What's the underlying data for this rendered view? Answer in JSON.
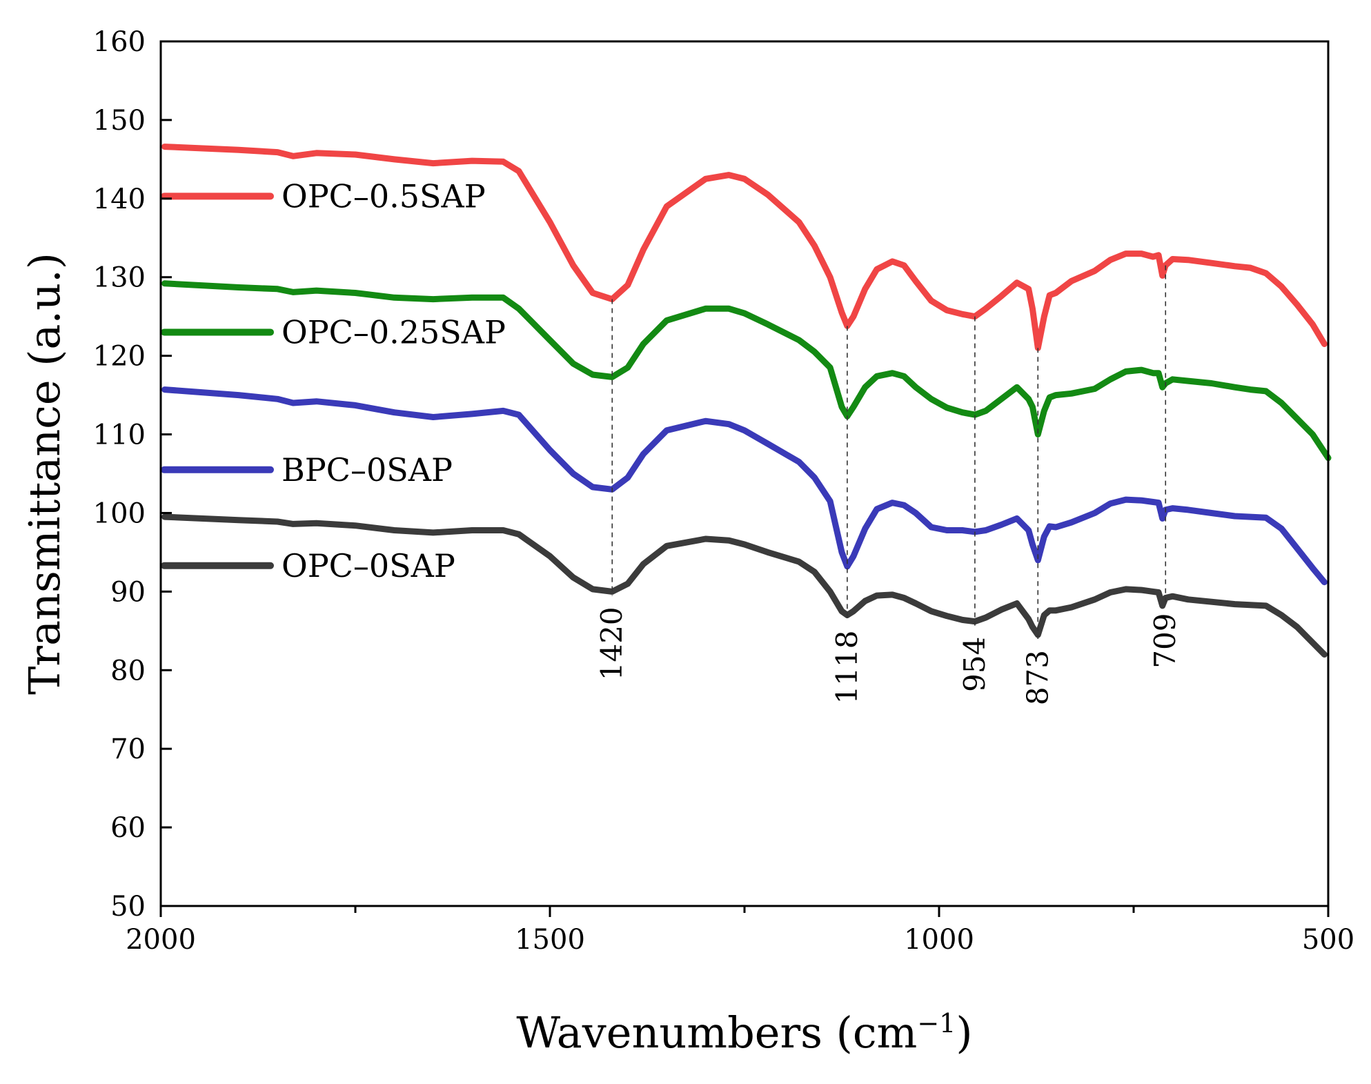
{
  "chart_data": {
    "type": "line",
    "xlabel": "Wavenumbers (cm",
    "xlabel_sup": "−1",
    "xlabel_close": ")",
    "ylabel": "Transmittance (a.u.)",
    "xlim": [
      2000,
      500
    ],
    "ylim": [
      50,
      160
    ],
    "x_ticks": [
      2000,
      1500,
      1000,
      500
    ],
    "x_ticks_labels": [
      "2000",
      "1500",
      "1000",
      "500"
    ],
    "x_minor_ticks": [
      1750,
      1250,
      750
    ],
    "y_ticks": [
      50,
      60,
      70,
      80,
      90,
      100,
      110,
      120,
      130,
      140,
      150,
      160
    ],
    "y_ticks_labels": [
      "50",
      "60",
      "70",
      "80",
      "90",
      "100",
      "110",
      "120",
      "130",
      "140",
      "150",
      "160"
    ],
    "grid": false,
    "legend_position": "left-inside",
    "series": [
      {
        "name": "OPC–0.5SAP",
        "color": "#f04545",
        "legend_y": 140.3,
        "x": [
          1995,
          1900,
          1850,
          1830,
          1800,
          1750,
          1700,
          1650,
          1600,
          1560,
          1540,
          1500,
          1470,
          1445,
          1420,
          1400,
          1380,
          1350,
          1300,
          1270,
          1250,
          1220,
          1180,
          1160,
          1140,
          1125,
          1118,
          1110,
          1095,
          1080,
          1060,
          1045,
          1030,
          1010,
          990,
          970,
          954,
          940,
          920,
          900,
          885,
          880,
          873,
          865,
          858,
          850,
          830,
          800,
          780,
          760,
          740,
          725,
          718,
          713,
          709,
          700,
          680,
          650,
          620,
          600,
          580,
          560,
          540,
          520,
          505
        ],
        "y": [
          146.6,
          146.2,
          145.9,
          145.4,
          145.8,
          145.6,
          145.0,
          144.5,
          144.8,
          144.7,
          143.5,
          137.0,
          131.5,
          128.0,
          127.2,
          129.0,
          133.5,
          139.0,
          142.5,
          143.0,
          142.5,
          140.5,
          137.0,
          134.0,
          130.0,
          125.5,
          123.8,
          125.0,
          128.5,
          131.0,
          132.0,
          131.5,
          129.5,
          127.0,
          125.8,
          125.3,
          125.0,
          126.0,
          127.6,
          129.3,
          128.5,
          126.0,
          121.0,
          125.0,
          127.7,
          128.0,
          129.5,
          130.8,
          132.2,
          133.0,
          133.0,
          132.6,
          132.8,
          130.2,
          131.5,
          132.3,
          132.2,
          131.8,
          131.4,
          131.2,
          130.5,
          128.8,
          126.5,
          124.0,
          121.5
        ]
      },
      {
        "name": "OPC–0.25SAP",
        "color": "#138a13",
        "legend_y": 123.0,
        "x": [
          1995,
          1900,
          1850,
          1830,
          1800,
          1750,
          1700,
          1650,
          1600,
          1560,
          1540,
          1500,
          1470,
          1445,
          1420,
          1400,
          1380,
          1350,
          1300,
          1270,
          1250,
          1220,
          1180,
          1160,
          1140,
          1125,
          1118,
          1110,
          1095,
          1080,
          1060,
          1045,
          1030,
          1010,
          990,
          970,
          954,
          940,
          920,
          900,
          885,
          880,
          873,
          865,
          858,
          850,
          830,
          800,
          780,
          760,
          740,
          725,
          718,
          713,
          709,
          700,
          680,
          650,
          620,
          600,
          580,
          560,
          540,
          520,
          500
        ],
        "y": [
          129.2,
          128.7,
          128.5,
          128.1,
          128.3,
          128.0,
          127.4,
          127.2,
          127.4,
          127.4,
          126.0,
          122.0,
          119.0,
          117.6,
          117.3,
          118.5,
          121.5,
          124.5,
          126.0,
          126.0,
          125.4,
          124.0,
          122.0,
          120.5,
          118.5,
          113.5,
          112.3,
          113.5,
          116.0,
          117.4,
          117.8,
          117.4,
          116.0,
          114.5,
          113.4,
          112.8,
          112.5,
          113.0,
          114.5,
          116.0,
          114.5,
          113.5,
          110.0,
          113.0,
          114.7,
          115.0,
          115.2,
          115.8,
          117.0,
          118.0,
          118.2,
          117.8,
          117.8,
          116.0,
          116.5,
          117.0,
          116.8,
          116.5,
          116.0,
          115.7,
          115.5,
          114.0,
          112.0,
          110.0,
          107.0
        ]
      },
      {
        "name": "BPC–0SAP",
        "color": "#3a3ab8",
        "legend_y": 105.5,
        "x": [
          1995,
          1900,
          1850,
          1830,
          1800,
          1750,
          1700,
          1650,
          1600,
          1560,
          1540,
          1500,
          1470,
          1445,
          1420,
          1400,
          1380,
          1350,
          1300,
          1270,
          1250,
          1220,
          1180,
          1160,
          1140,
          1125,
          1118,
          1110,
          1095,
          1080,
          1060,
          1045,
          1030,
          1010,
          990,
          970,
          954,
          940,
          920,
          900,
          885,
          880,
          873,
          865,
          858,
          850,
          830,
          800,
          780,
          760,
          740,
          725,
          718,
          713,
          709,
          700,
          680,
          650,
          620,
          600,
          580,
          560,
          540,
          520,
          505
        ],
        "y": [
          115.7,
          115.0,
          114.5,
          114.0,
          114.2,
          113.7,
          112.8,
          112.2,
          112.6,
          113.0,
          112.5,
          108.0,
          105.0,
          103.3,
          103.0,
          104.5,
          107.5,
          110.5,
          111.7,
          111.3,
          110.5,
          108.8,
          106.5,
          104.5,
          101.5,
          95.0,
          93.2,
          94.5,
          98.0,
          100.5,
          101.3,
          101.0,
          100.0,
          98.2,
          97.8,
          97.8,
          97.6,
          97.8,
          98.5,
          99.3,
          97.8,
          96.0,
          94.0,
          97.0,
          98.3,
          98.2,
          98.8,
          100.0,
          101.2,
          101.7,
          101.6,
          101.4,
          101.3,
          99.3,
          100.4,
          100.6,
          100.4,
          100.0,
          99.6,
          99.5,
          99.4,
          98.0,
          95.5,
          93.0,
          91.2
        ]
      },
      {
        "name": "OPC–0SAP",
        "color": "#3b3b3b",
        "legend_y": 93.3,
        "x": [
          1995,
          1900,
          1850,
          1830,
          1800,
          1750,
          1700,
          1650,
          1600,
          1560,
          1540,
          1500,
          1470,
          1445,
          1420,
          1400,
          1380,
          1350,
          1300,
          1270,
          1250,
          1220,
          1180,
          1160,
          1140,
          1125,
          1118,
          1110,
          1095,
          1080,
          1060,
          1045,
          1030,
          1010,
          990,
          970,
          954,
          940,
          920,
          900,
          885,
          880,
          873,
          865,
          858,
          850,
          830,
          800,
          780,
          760,
          740,
          725,
          718,
          713,
          709,
          700,
          680,
          650,
          620,
          600,
          580,
          560,
          540,
          520,
          505
        ],
        "y": [
          99.5,
          99.1,
          98.9,
          98.6,
          98.7,
          98.4,
          97.8,
          97.5,
          97.8,
          97.8,
          97.3,
          94.5,
          91.8,
          90.3,
          90.0,
          91.0,
          93.5,
          95.8,
          96.7,
          96.5,
          96.0,
          95.0,
          93.8,
          92.5,
          90.0,
          87.5,
          87.0,
          87.5,
          88.8,
          89.5,
          89.6,
          89.2,
          88.5,
          87.5,
          86.9,
          86.4,
          86.2,
          86.7,
          87.7,
          88.5,
          86.5,
          85.5,
          84.5,
          87.0,
          87.6,
          87.6,
          88.0,
          89.0,
          89.9,
          90.3,
          90.2,
          90.0,
          89.9,
          88.2,
          89.2,
          89.4,
          89.0,
          88.7,
          88.4,
          88.3,
          88.2,
          87.0,
          85.5,
          83.5,
          82.0
        ]
      }
    ],
    "peaks": [
      {
        "x": 1420,
        "label": "1420",
        "y_top": 127.2,
        "y_bottom": 90.0
      },
      {
        "x": 1118,
        "label": "1118",
        "y_top": 123.8,
        "y_bottom": 87.0
      },
      {
        "x": 954,
        "label": "954",
        "y_top": 125.0,
        "y_bottom": 86.2
      },
      {
        "x": 873,
        "label": "873",
        "y_top": 121.0,
        "y_bottom": 84.5
      },
      {
        "x": 709,
        "label": "709",
        "y_top": 131.5,
        "y_bottom": 89.2
      }
    ]
  }
}
